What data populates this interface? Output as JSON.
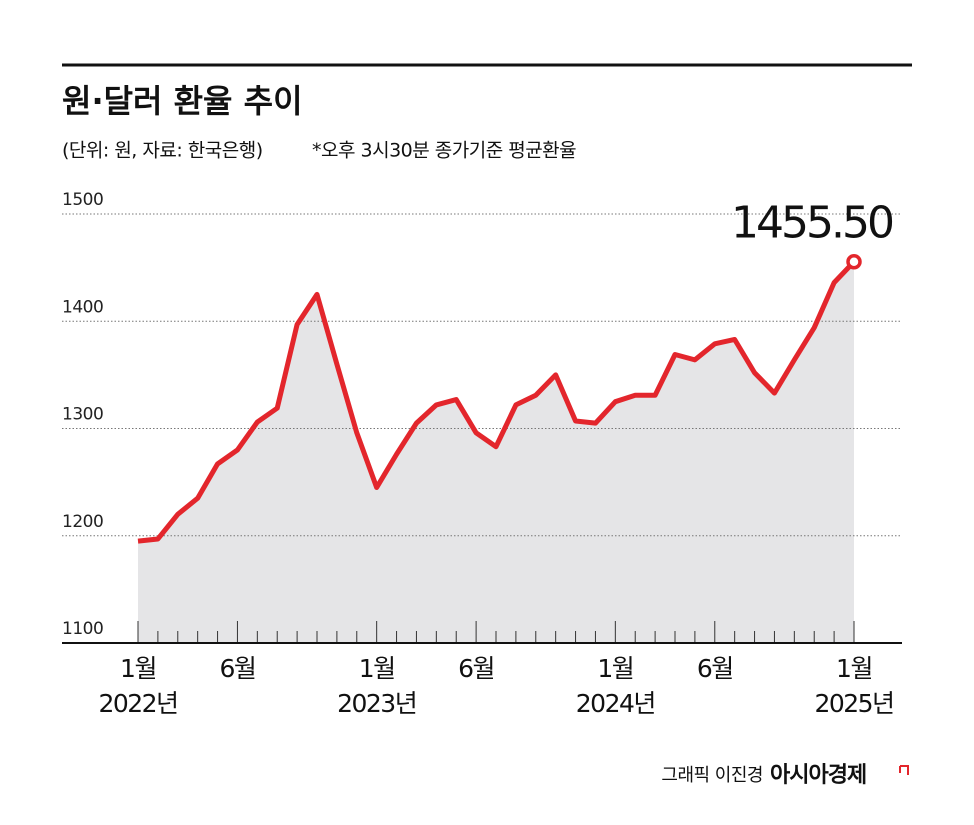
{
  "chart_data": {
    "type": "area",
    "title": "원·달러 환율 추이",
    "subtitle": "(단위: 원, 자료: 한국은행)",
    "note": "*오후 3시30분 종가기준 평균환율",
    "credit": "그래픽 이진경",
    "source_brand": "아시아경제",
    "categories": [
      "1월",
      null,
      null,
      null,
      null,
      "6월",
      null,
      null,
      null,
      null,
      null,
      null,
      "1월",
      null,
      null,
      null,
      null,
      "6월",
      null,
      null,
      null,
      null,
      null,
      null,
      "1월",
      null,
      null,
      null,
      null,
      "6월",
      null,
      null,
      null,
      null,
      null,
      null,
      "1월"
    ],
    "category_years": [
      "2022년",
      null,
      null,
      null,
      null,
      null,
      null,
      null,
      null,
      null,
      null,
      null,
      "2023년",
      null,
      null,
      null,
      null,
      null,
      null,
      null,
      null,
      null,
      null,
      null,
      "2024년",
      null,
      null,
      null,
      null,
      null,
      null,
      null,
      null,
      null,
      null,
      null,
      "2025년"
    ],
    "values": [
      1195,
      1197,
      1220,
      1235,
      1267,
      1280,
      1306,
      1319,
      1397,
      1425,
      1360,
      1296,
      1245,
      1276,
      1305,
      1322,
      1327,
      1296,
      1283,
      1322,
      1331,
      1350,
      1307,
      1305,
      1325,
      1331,
      1331,
      1369,
      1364,
      1379,
      1383,
      1352,
      1333,
      1364,
      1394,
      1436,
      1455.5
    ],
    "value_labels": [
      null,
      null,
      null,
      null,
      null,
      null,
      null,
      null,
      null,
      null,
      null,
      null,
      null,
      null,
      null,
      null,
      null,
      null,
      null,
      null,
      null,
      null,
      null,
      null,
      null,
      null,
      null,
      null,
      null,
      null,
      null,
      null,
      null,
      null,
      null,
      null,
      "1455.50"
    ],
    "color": "#e3262c",
    "fill_color": "#e5e5e7",
    "ylim": [
      1100,
      1500
    ],
    "yticks": [
      1100,
      1200,
      1300,
      1400,
      1500
    ],
    "grid": true
  }
}
